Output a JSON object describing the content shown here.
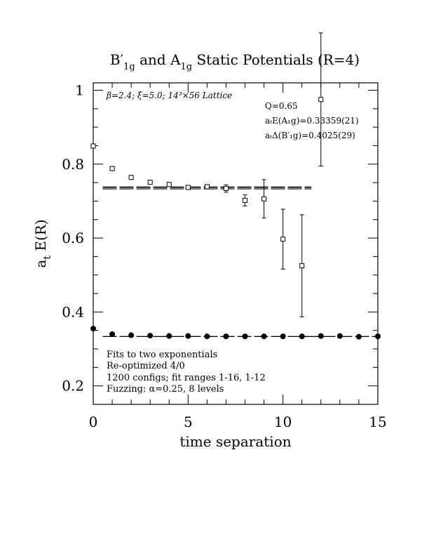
{
  "chart_data": {
    "type": "scatter",
    "title_main": "B′",
    "title_sub1": "1g",
    "title_mid": " and A",
    "title_sub2": "1g",
    "title_end": " Static Potentials (R=4)",
    "xlabel": "time separation",
    "ylabel_main": "a",
    "ylabel_sub": "t",
    "ylabel_end": " E(R)",
    "xlim": [
      0,
      15
    ],
    "ylim": [
      0.15,
      1.02
    ],
    "xticks": [
      0,
      5,
      10,
      15
    ],
    "xtick_labels": [
      "0",
      "5",
      "10",
      "15"
    ],
    "yticks": [
      0.2,
      0.4,
      0.6,
      0.8,
      1.0
    ],
    "ytick_labels": [
      "0.2",
      "0.4",
      "0.6",
      "0.8",
      "1"
    ],
    "annotation_topleft": "β=2.4; ξ=5.0; 14³×56 Lattice",
    "annotation_q": "Q=0.65",
    "annotation_energy": "aₜE(A₁g)=0.33359(21)",
    "annotation_delta": "aₜΔ(B′₁g)=0.4025(29)",
    "notes": [
      "Fits to two exponentials",
      "Re-optimized 4/0",
      "1200 configs; fit ranges 1-16, 1-12",
      "Fuzzing: α=0.25, 8 levels"
    ],
    "series": [
      {
        "marker": "open-square",
        "x": [
          0,
          1,
          2,
          3,
          4,
          5,
          6,
          7,
          8,
          9,
          10,
          11,
          12
        ],
        "y": [
          0.849,
          0.788,
          0.764,
          0.751,
          0.745,
          0.737,
          0.739,
          0.734,
          0.702,
          0.706,
          0.597,
          0.525,
          0.975
        ],
        "err": [
          0.001,
          0.001,
          0.001,
          0.002,
          0.002,
          0.003,
          0.005,
          0.01,
          0.015,
          0.052,
          0.081,
          0.138,
          0.18
        ]
      },
      {
        "marker": "filled-circle",
        "x": [
          0,
          1,
          2,
          3,
          4,
          5,
          6,
          7,
          8,
          9,
          10,
          11,
          12,
          13,
          14,
          15
        ],
        "y": [
          0.355,
          0.34,
          0.337,
          0.336,
          0.335,
          0.335,
          0.334,
          0.334,
          0.334,
          0.334,
          0.334,
          0.334,
          0.335,
          0.335,
          0.333,
          0.334
        ],
        "err": [
          0.001,
          0.001,
          0.001,
          0.001,
          0.001,
          0.001,
          0.001,
          0.001,
          0.001,
          0.001,
          0.001,
          0.002,
          0.002,
          0.002,
          0.003,
          0.004
        ]
      }
    ],
    "fit_bands": [
      {
        "x": [
          0.5,
          11.5
        ],
        "y": 0.7359,
        "err": 0.0029
      },
      {
        "x": [
          0.5,
          15
        ],
        "y": 0.33359,
        "err": 0.00021
      }
    ]
  }
}
